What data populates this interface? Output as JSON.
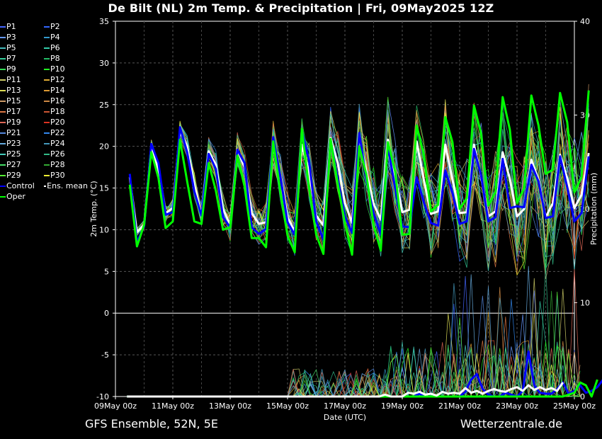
{
  "title": "De Bilt  (NL)  2m Temp. & Precipitation | Fri, 09May2025 12Z",
  "footer_left": "GFS Ensemble, 52N, 5E",
  "footer_right": "Wetterzentrale.de",
  "legend": [
    {
      "label": "P1",
      "color": "#4466ff"
    },
    {
      "label": "P2",
      "color": "#3366ff"
    },
    {
      "label": "P3",
      "color": "#6699ff"
    },
    {
      "label": "P4",
      "color": "#3399cc"
    },
    {
      "label": "P5",
      "color": "#44bbbb"
    },
    {
      "label": "P6",
      "color": "#33ccaa"
    },
    {
      "label": "P7",
      "color": "#33cc99"
    },
    {
      "label": "P8",
      "color": "#22bb66"
    },
    {
      "label": "P9",
      "color": "#33dd55"
    },
    {
      "label": "P10",
      "color": "#22ee22"
    },
    {
      "label": "P11",
      "color": "#cccc66"
    },
    {
      "label": "P12",
      "color": "#ddaa33"
    },
    {
      "label": "P13",
      "color": "#dddd55"
    },
    {
      "label": "P14",
      "color": "#dd9933"
    },
    {
      "label": "P15",
      "color": "#cc9966"
    },
    {
      "label": "P16",
      "color": "#cc8844"
    },
    {
      "label": "P17",
      "color": "#dd7744"
    },
    {
      "label": "P18",
      "color": "#cc5533"
    },
    {
      "label": "P19",
      "color": "#dd6655"
    },
    {
      "label": "P20",
      "color": "#dd3322"
    },
    {
      "label": "P21",
      "color": "#5588dd"
    },
    {
      "label": "P22",
      "color": "#3388ee"
    },
    {
      "label": "P23",
      "color": "#66aadd"
    },
    {
      "label": "P24",
      "color": "#4499bb"
    },
    {
      "label": "P25",
      "color": "#44ccbb"
    },
    {
      "label": "P26",
      "color": "#33bb88"
    },
    {
      "label": "P27",
      "color": "#44dd66"
    },
    {
      "label": "P28",
      "color": "#33aa33"
    },
    {
      "label": "P29",
      "color": "#55ee33"
    },
    {
      "label": "P30",
      "color": "#eeee33"
    },
    {
      "label": "Control",
      "color": "#0000ff"
    },
    {
      "label": "Ens. mean",
      "color": "#ffffff"
    },
    {
      "label": "Oper",
      "color": "#00ff00"
    }
  ],
  "chart_data": {
    "type": "line",
    "title": "De Bilt  (NL)  2m Temp. & Precipitation | Fri, 09May2025 12Z",
    "xlabel": "Date (UTC)",
    "ylabel": "2m Temp. (°C)",
    "y2label": "Precipitation (mm)",
    "ylim": [
      -10,
      35
    ],
    "y2lim": [
      0,
      40
    ],
    "yticks": [
      -10,
      -5,
      0,
      5,
      10,
      15,
      20,
      25,
      30,
      35
    ],
    "y2ticks": [
      0,
      10,
      20,
      30,
      40
    ],
    "xtick_labels": [
      "09May 00z",
      "11May 00z",
      "13May 00z",
      "15May 00z",
      "17May 00z",
      "19May 00z",
      "21May 00z",
      "23May 00z",
      "25May 00z"
    ],
    "x_step_hours": 6,
    "x_start": "09May 12z",
    "grid": true,
    "legend_position": "left",
    "series_main": [
      {
        "name": "Ens. mean",
        "color": "#ffffff",
        "values": [
          16.3,
          9.7,
          10.6,
          20.1,
          17.2,
          12.0,
          12.6,
          21.8,
          20.0,
          15.4,
          11.7,
          19.4,
          17.8,
          12.5,
          10.6,
          19.6,
          17.5,
          12.0,
          10.7,
          10.9,
          20.1,
          16.5,
          11.5,
          9.8,
          20.2,
          16.9,
          11.7,
          10.5,
          21.0,
          18.0,
          13.2,
          10.8,
          21.0,
          17.0,
          13.1,
          11.2,
          20.8,
          16.5,
          12.1,
          12.4,
          20.6,
          16.0,
          11.9,
          12.2,
          20.2,
          16.0,
          12.0,
          12.1,
          20.2,
          16.3,
          11.6,
          12.2,
          19.3,
          16.1,
          11.6,
          12.5,
          18.4,
          16.0,
          11.5,
          13.2,
          19.0,
          16.2,
          12.6,
          14.2,
          19.2
        ]
      },
      {
        "name": "Control",
        "color": "#0000ff",
        "values": [
          16.7,
          8.5,
          10.4,
          20.3,
          18.0,
          11.8,
          12.1,
          22.3,
          19.3,
          14.6,
          11.7,
          19.1,
          17.3,
          11.5,
          10.3,
          19.6,
          18.0,
          10.3,
          9.5,
          10.1,
          21.1,
          16.4,
          10.9,
          9.4,
          21.9,
          18.3,
          11.0,
          8.8,
          20.8,
          16.2,
          11.6,
          9.6,
          21.6,
          16.0,
          12.0,
          9.4,
          20.0,
          15.0,
          10.4,
          10.3,
          16.3,
          13.3,
          10.8,
          10.5,
          17.1,
          14.4,
          10.7,
          11.0,
          19.7,
          16.5,
          11.0,
          11.5,
          18.5,
          12.6,
          12.8,
          12.7,
          17.8,
          15.8,
          11.4,
          11.6,
          18.8,
          15.1,
          11.0,
          12.0,
          18.8
        ]
      },
      {
        "name": "Oper",
        "color": "#00ff00",
        "values": [
          15.4,
          8.0,
          10.6,
          19.3,
          16.2,
          10.2,
          11.0,
          20.8,
          15.8,
          11.0,
          10.7,
          18.0,
          14.7,
          10.0,
          10.3,
          18.9,
          15.2,
          9.0,
          9.0,
          7.9,
          20.6,
          14.5,
          9.3,
          7.3,
          22.1,
          15.0,
          9.4,
          7.1,
          20.9,
          15.5,
          10.8,
          7.0,
          20.0,
          16.6,
          10.5,
          7.5,
          20.5,
          17.0,
          9.4,
          9.5,
          22.5,
          19.0,
          12.2,
          13.0,
          23.5,
          20.5,
          12.5,
          13.8,
          24.9,
          21.5,
          12.9,
          14.5,
          25.9,
          22.0,
          13.2,
          15.0,
          26.1,
          22.5,
          16.7,
          17.2,
          26.4,
          22.9,
          14.5,
          16.3,
          26.7
        ]
      }
    ],
    "precip_mean": [
      0,
      0,
      0,
      0,
      0,
      0,
      0,
      0,
      0,
      0,
      0,
      0,
      0,
      0,
      0,
      0,
      0,
      0,
      0,
      0,
      0,
      0,
      0,
      0,
      0,
      0,
      0,
      0,
      0,
      0,
      0,
      0,
      0,
      0,
      0,
      0,
      0,
      0,
      0,
      0,
      0,
      0,
      0,
      0,
      0,
      0.2,
      0,
      0,
      0,
      0.4,
      0.3,
      0.5,
      0.2,
      0.3,
      0.1,
      0.5,
      0.3,
      0.4,
      0.3,
      0.9,
      0.4,
      0.6,
      0.3,
      0.6,
      0.8,
      0.6,
      0.5,
      0.8,
      1.0,
      0.6,
      1.2,
      0.7,
      1.0,
      0.7,
      0.9,
      0.6,
      1.5
    ],
    "precip_control": [
      0,
      0,
      0,
      0,
      0,
      0,
      0,
      0,
      0,
      0,
      0,
      0,
      0,
      0,
      0,
      0,
      0,
      0,
      0,
      0,
      0,
      0,
      0,
      0,
      0,
      0,
      0,
      0,
      0,
      0,
      0,
      0,
      0,
      0,
      0,
      0,
      0,
      0,
      0,
      0,
      0,
      0,
      0,
      0,
      0,
      0,
      0,
      0,
      0,
      0,
      0,
      0.3,
      0,
      0,
      0,
      0,
      0,
      0,
      0,
      0.5,
      1.8,
      2.4,
      0.8,
      0.2,
      0,
      0,
      0.4,
      0.2,
      0,
      0.6,
      4.8,
      1.2,
      0.4,
      0.3,
      0.3,
      0.8,
      1.5,
      0.3,
      0.6,
      1.2,
      0.4,
      0.6,
      1.0,
      1.8
    ],
    "precip_oper": [
      0,
      0,
      0,
      0,
      0,
      0,
      0,
      0,
      0,
      0,
      0,
      0,
      0,
      0,
      0,
      0,
      0,
      0,
      0,
      0,
      0,
      0,
      0,
      0,
      0,
      0,
      0,
      0,
      0,
      0,
      0,
      0,
      0,
      0,
      0,
      0,
      0,
      0,
      0,
      0,
      0,
      0,
      0,
      0,
      0,
      0,
      0,
      0,
      0,
      0,
      0,
      0,
      0,
      0,
      0,
      0,
      0,
      0,
      0,
      0,
      0,
      0,
      0,
      0,
      0,
      0,
      0,
      0,
      0,
      0,
      0,
      0,
      0,
      0,
      0,
      0,
      0,
      0.2,
      0.4,
      1.5,
      1.2,
      0,
      1.8
    ]
  }
}
